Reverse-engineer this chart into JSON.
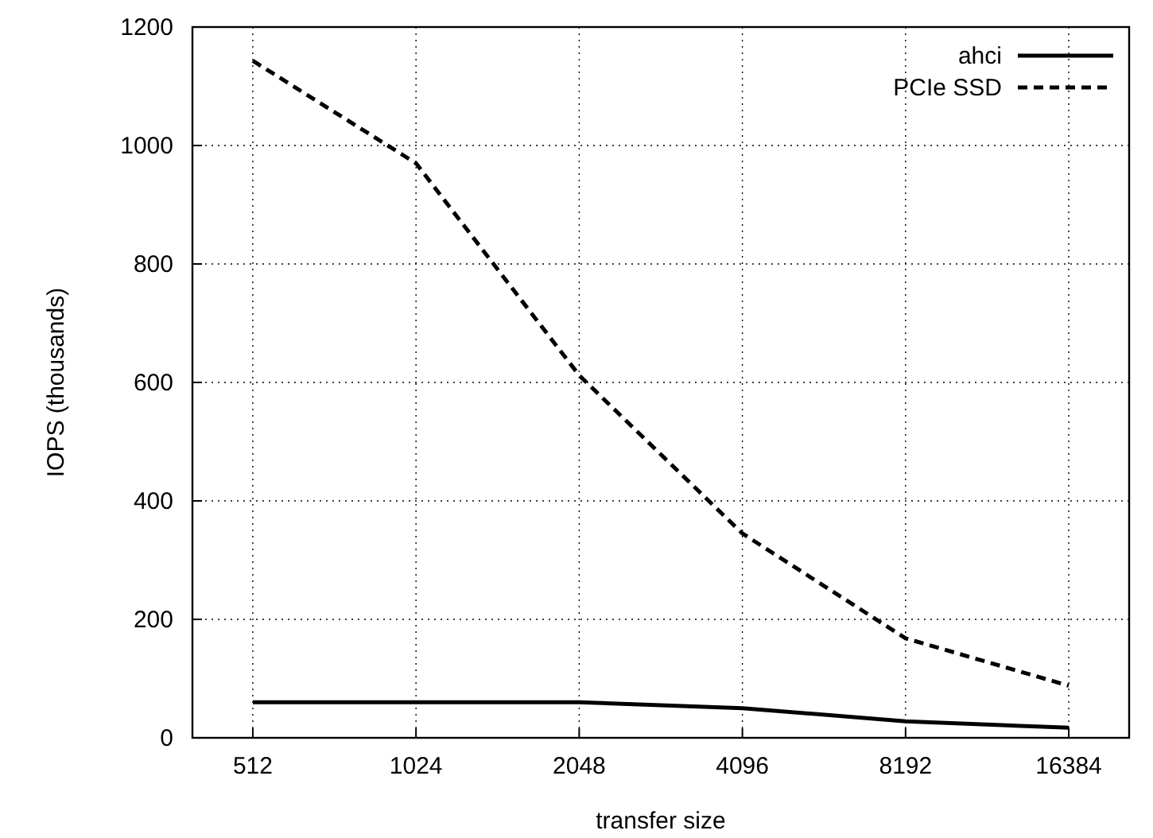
{
  "chart_data": {
    "type": "line",
    "xlabel": "transfer size",
    "ylabel": "IOPS (thousands)",
    "categories": [
      "512",
      "1024",
      "2048",
      "4096",
      "8192",
      "16384"
    ],
    "series": [
      {
        "name": "ahci",
        "color": "#000000",
        "line_style": "solid",
        "values": [
          60,
          60,
          60,
          50,
          28,
          17
        ]
      },
      {
        "name": "PCIe SSD",
        "color": "#000000",
        "line_style": "dashed",
        "values": [
          1143,
          970,
          612,
          345,
          168,
          88
        ]
      }
    ],
    "ylim": [
      0,
      1200
    ],
    "yticks": [
      0,
      200,
      400,
      600,
      800,
      1000,
      1200
    ],
    "grid": true,
    "legend": "top right",
    "marker": "none"
  }
}
